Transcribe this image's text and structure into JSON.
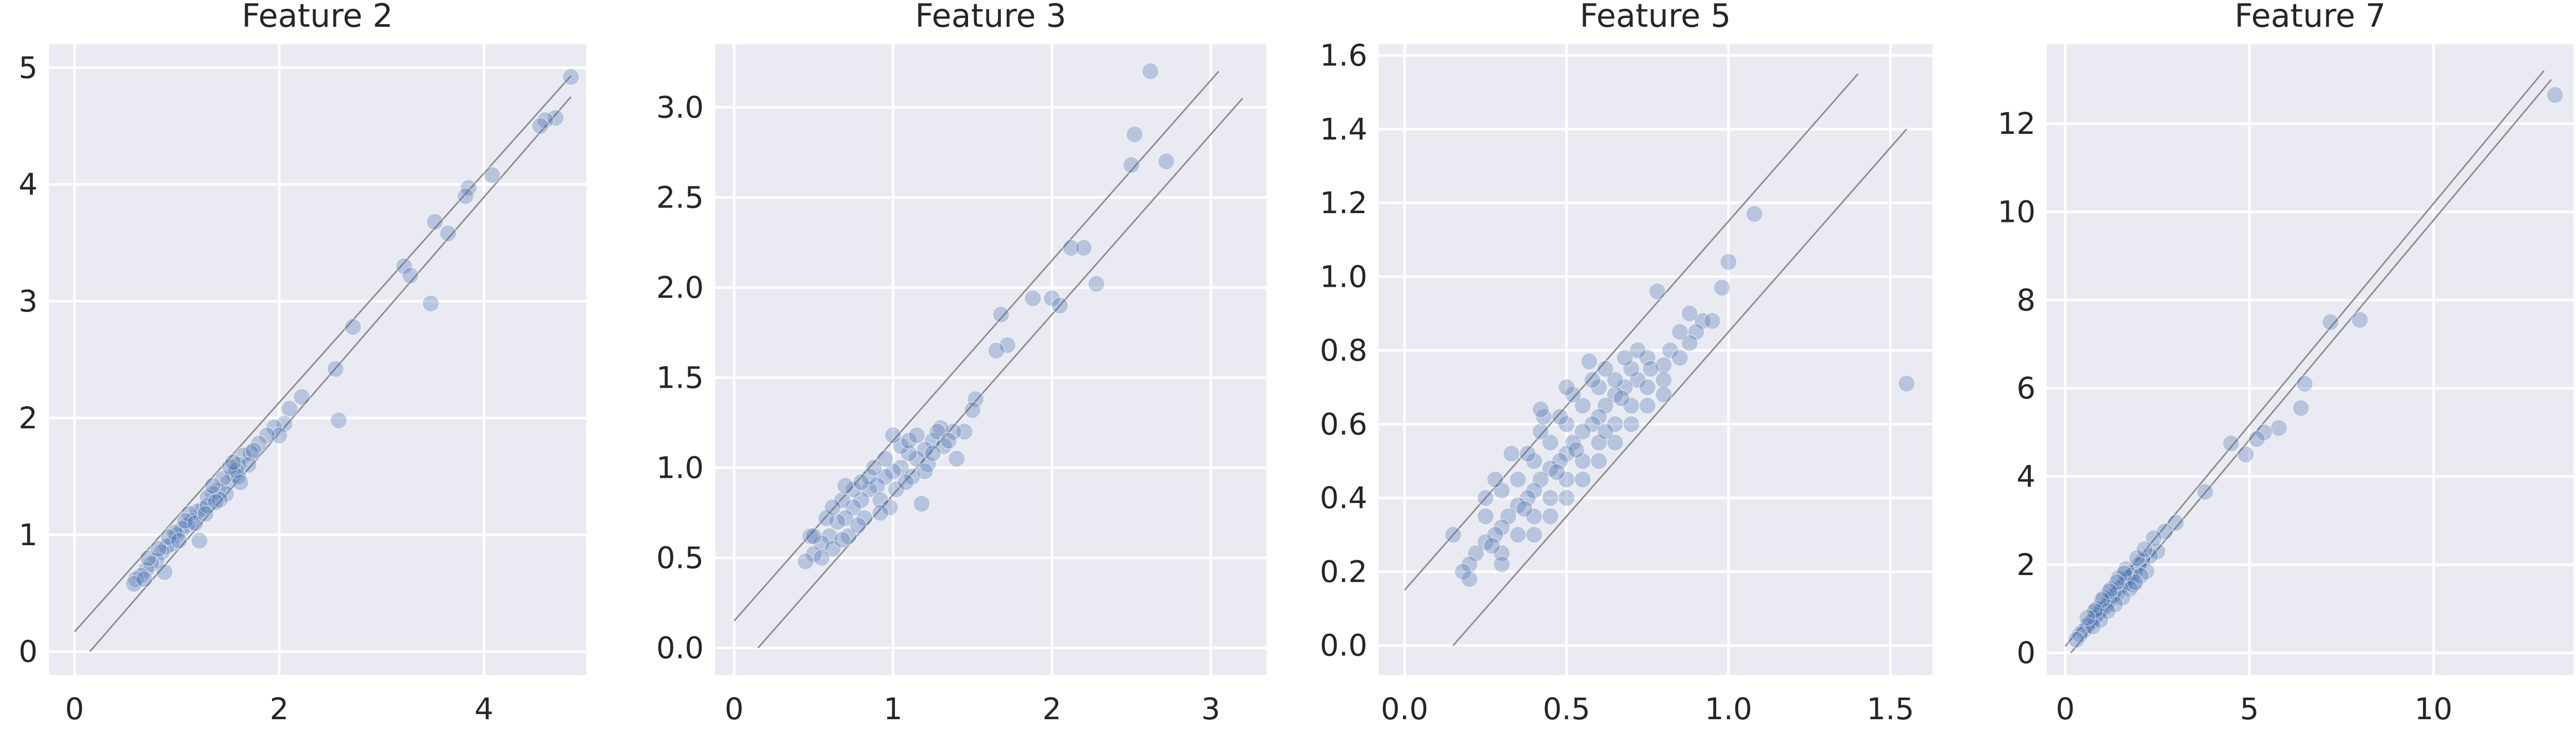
{
  "chart_data": [
    {
      "type": "scatter",
      "title": "Feature 2",
      "xlim": [
        -0.25,
        5.0
      ],
      "ylim": [
        -0.2,
        5.2
      ],
      "xticks": [
        0,
        2,
        4
      ],
      "yticks": [
        0,
        1,
        2,
        3,
        4,
        5
      ],
      "xtick_labels": [
        "0",
        "2",
        "4"
      ],
      "ytick_labels": [
        "0",
        "1",
        "2",
        "3",
        "4",
        "5"
      ],
      "grid": true,
      "reference_lines": [
        {
          "x": [
            0.0,
            4.85
          ],
          "y": [
            0.17,
            4.93
          ]
        },
        {
          "x": [
            0.15,
            4.85
          ],
          "y": [
            0.0,
            4.75
          ]
        }
      ],
      "points": [
        [
          4.85,
          4.92
        ],
        [
          4.7,
          4.57
        ],
        [
          4.6,
          4.55
        ],
        [
          4.55,
          4.5
        ],
        [
          4.08,
          4.08
        ],
        [
          3.85,
          3.97
        ],
        [
          3.82,
          3.9
        ],
        [
          3.52,
          3.68
        ],
        [
          3.65,
          3.58
        ],
        [
          3.48,
          2.98
        ],
        [
          3.22,
          3.3
        ],
        [
          3.28,
          3.22
        ],
        [
          2.72,
          2.78
        ],
        [
          2.55,
          2.42
        ],
        [
          2.58,
          1.98
        ],
        [
          2.22,
          2.18
        ],
        [
          2.1,
          2.08
        ],
        [
          2.05,
          1.95
        ],
        [
          1.95,
          1.92
        ],
        [
          2.0,
          1.85
        ],
        [
          1.88,
          1.85
        ],
        [
          1.8,
          1.78
        ],
        [
          1.72,
          1.7
        ],
        [
          1.65,
          1.68
        ],
        [
          1.6,
          1.6
        ],
        [
          1.55,
          1.52
        ],
        [
          1.5,
          1.45
        ],
        [
          1.45,
          1.48
        ],
        [
          1.4,
          1.38
        ],
        [
          1.35,
          1.35
        ],
        [
          1.3,
          1.32
        ],
        [
          1.25,
          1.22
        ],
        [
          1.2,
          1.2
        ],
        [
          1.15,
          1.12
        ],
        [
          1.1,
          1.08
        ],
        [
          1.05,
          1.05
        ],
        [
          1.0,
          1.0
        ],
        [
          0.95,
          0.92
        ],
        [
          0.9,
          0.9
        ],
        [
          0.85,
          0.85
        ],
        [
          0.8,
          0.78
        ],
        [
          0.75,
          0.75
        ],
        [
          0.7,
          0.7
        ],
        [
          0.65,
          0.65
        ],
        [
          0.6,
          0.62
        ],
        [
          0.58,
          0.58
        ],
        [
          1.22,
          0.95
        ],
        [
          0.88,
          0.68
        ],
        [
          1.6,
          1.5
        ],
        [
          1.7,
          1.6
        ],
        [
          1.48,
          1.35
        ],
        [
          1.12,
          1.18
        ],
        [
          1.3,
          1.25
        ],
        [
          1.42,
          1.3
        ],
        [
          1.58,
          1.55
        ],
        [
          1.62,
          1.45
        ],
        [
          0.98,
          1.02
        ],
        [
          1.08,
          1.12
        ],
        [
          1.18,
          1.1
        ],
        [
          0.72,
          0.8
        ],
        [
          0.68,
          0.62
        ],
        [
          1.52,
          1.58
        ],
        [
          1.75,
          1.72
        ],
        [
          1.35,
          1.42
        ],
        [
          0.92,
          0.98
        ],
        [
          1.02,
          0.95
        ],
        [
          1.38,
          1.28
        ],
        [
          1.55,
          1.62
        ],
        [
          1.28,
          1.18
        ],
        [
          0.82,
          0.88
        ]
      ]
    },
    {
      "type": "scatter",
      "title": "Feature 3",
      "xlim": [
        -0.12,
        3.35
      ],
      "ylim": [
        -0.15,
        3.35
      ],
      "xticks": [
        0,
        1,
        2,
        3
      ],
      "yticks": [
        0.0,
        0.5,
        1.0,
        1.5,
        2.0,
        2.5,
        3.0
      ],
      "xtick_labels": [
        "0",
        "1",
        "2",
        "3"
      ],
      "ytick_labels": [
        "0.0",
        "0.5",
        "1.0",
        "1.5",
        "2.0",
        "2.5",
        "3.0"
      ],
      "grid": true,
      "reference_lines": [
        {
          "x": [
            0.0,
            3.05
          ],
          "y": [
            0.15,
            3.2
          ]
        },
        {
          "x": [
            0.15,
            3.2
          ],
          "y": [
            0.0,
            3.05
          ]
        }
      ],
      "points": [
        [
          2.62,
          3.2
        ],
        [
          2.52,
          2.85
        ],
        [
          2.72,
          2.7
        ],
        [
          2.5,
          2.68
        ],
        [
          2.12,
          2.22
        ],
        [
          2.2,
          2.22
        ],
        [
          2.28,
          2.02
        ],
        [
          2.0,
          1.94
        ],
        [
          1.88,
          1.94
        ],
        [
          2.05,
          1.9
        ],
        [
          1.68,
          1.85
        ],
        [
          1.72,
          1.68
        ],
        [
          1.65,
          1.65
        ],
        [
          1.52,
          1.38
        ],
        [
          1.5,
          1.32
        ],
        [
          1.45,
          1.2
        ],
        [
          1.38,
          1.2
        ],
        [
          1.3,
          1.22
        ],
        [
          1.25,
          1.15
        ],
        [
          1.2,
          1.1
        ],
        [
          1.15,
          1.05
        ],
        [
          1.1,
          1.08
        ],
        [
          1.05,
          1.0
        ],
        [
          1.0,
          0.98
        ],
        [
          0.95,
          0.95
        ],
        [
          0.9,
          0.9
        ],
        [
          0.85,
          0.88
        ],
        [
          0.8,
          0.82
        ],
        [
          0.75,
          0.78
        ],
        [
          0.7,
          0.72
        ],
        [
          0.65,
          0.7
        ],
        [
          0.6,
          0.62
        ],
        [
          0.55,
          0.58
        ],
        [
          0.5,
          0.52
        ],
        [
          0.45,
          0.48
        ],
        [
          0.48,
          0.62
        ],
        [
          0.62,
          0.55
        ],
        [
          0.72,
          0.62
        ],
        [
          0.82,
          0.72
        ],
        [
          0.92,
          0.82
        ],
        [
          1.02,
          0.88
        ],
        [
          1.12,
          0.95
        ],
        [
          1.22,
          1.02
        ],
        [
          1.18,
          0.8
        ],
        [
          1.05,
          1.12
        ],
        [
          0.95,
          1.05
        ],
        [
          0.85,
          0.95
        ],
        [
          0.75,
          0.88
        ],
        [
          0.68,
          0.82
        ],
        [
          0.58,
          0.72
        ],
        [
          1.32,
          1.12
        ],
        [
          1.4,
          1.05
        ],
        [
          1.28,
          1.2
        ],
        [
          1.1,
          1.15
        ],
        [
          0.88,
          1.0
        ],
        [
          0.78,
          0.68
        ],
        [
          0.68,
          0.6
        ],
        [
          0.55,
          0.5
        ],
        [
          0.5,
          0.62
        ],
        [
          0.98,
          0.78
        ],
        [
          1.08,
          0.92
        ],
        [
          1.15,
          1.18
        ],
        [
          1.25,
          1.08
        ],
        [
          0.92,
          0.75
        ],
        [
          0.8,
          0.92
        ],
        [
          1.35,
          1.15
        ],
        [
          0.62,
          0.78
        ],
        [
          1.0,
          1.18
        ],
        [
          0.7,
          0.9
        ],
        [
          1.2,
          0.98
        ]
      ]
    },
    {
      "type": "scatter",
      "title": "Feature 5",
      "xlim": [
        -0.08,
        1.63
      ],
      "ylim": [
        -0.08,
        1.63
      ],
      "xticks": [
        0.0,
        0.5,
        1.0,
        1.5
      ],
      "yticks": [
        0.0,
        0.2,
        0.4,
        0.6,
        0.8,
        1.0,
        1.2,
        1.4,
        1.6
      ],
      "xtick_labels": [
        "0.0",
        "0.5",
        "1.0",
        "1.5"
      ],
      "ytick_labels": [
        "0.0",
        "0.2",
        "0.4",
        "0.6",
        "0.8",
        "1.0",
        "1.2",
        "1.4",
        "1.6"
      ],
      "grid": true,
      "reference_lines": [
        {
          "x": [
            0.0,
            1.4
          ],
          "y": [
            0.15,
            1.55
          ]
        },
        {
          "x": [
            0.15,
            1.55
          ],
          "y": [
            0.0,
            1.4
          ]
        }
      ],
      "points": [
        [
          1.55,
          0.71
        ],
        [
          1.08,
          1.17
        ],
        [
          1.0,
          1.04
        ],
        [
          0.98,
          0.97
        ],
        [
          0.92,
          0.88
        ],
        [
          0.95,
          0.88
        ],
        [
          0.88,
          0.9
        ],
        [
          0.9,
          0.85
        ],
        [
          0.85,
          0.85
        ],
        [
          0.78,
          0.96
        ],
        [
          0.82,
          0.8
        ],
        [
          0.8,
          0.76
        ],
        [
          0.75,
          0.78
        ],
        [
          0.72,
          0.72
        ],
        [
          0.7,
          0.75
        ],
        [
          0.68,
          0.7
        ],
        [
          0.65,
          0.68
        ],
        [
          0.62,
          0.65
        ],
        [
          0.6,
          0.62
        ],
        [
          0.58,
          0.6
        ],
        [
          0.55,
          0.58
        ],
        [
          0.52,
          0.55
        ],
        [
          0.5,
          0.52
        ],
        [
          0.48,
          0.5
        ],
        [
          0.45,
          0.48
        ],
        [
          0.42,
          0.45
        ],
        [
          0.4,
          0.42
        ],
        [
          0.38,
          0.4
        ],
        [
          0.35,
          0.38
        ],
        [
          0.32,
          0.35
        ],
        [
          0.3,
          0.32
        ],
        [
          0.28,
          0.3
        ],
        [
          0.25,
          0.28
        ],
        [
          0.22,
          0.25
        ],
        [
          0.2,
          0.22
        ],
        [
          0.18,
          0.2
        ],
        [
          0.15,
          0.3
        ],
        [
          0.2,
          0.18
        ],
        [
          0.25,
          0.35
        ],
        [
          0.3,
          0.25
        ],
        [
          0.35,
          0.3
        ],
        [
          0.4,
          0.35
        ],
        [
          0.45,
          0.4
        ],
        [
          0.5,
          0.45
        ],
        [
          0.55,
          0.5
        ],
        [
          0.6,
          0.55
        ],
        [
          0.65,
          0.6
        ],
        [
          0.7,
          0.65
        ],
        [
          0.75,
          0.7
        ],
        [
          0.8,
          0.72
        ],
        [
          0.35,
          0.45
        ],
        [
          0.4,
          0.5
        ],
        [
          0.45,
          0.55
        ],
        [
          0.5,
          0.6
        ],
        [
          0.55,
          0.65
        ],
        [
          0.6,
          0.7
        ],
        [
          0.65,
          0.72
        ],
        [
          0.3,
          0.42
        ],
        [
          0.25,
          0.4
        ],
        [
          0.38,
          0.52
        ],
        [
          0.42,
          0.58
        ],
        [
          0.48,
          0.62
        ],
        [
          0.52,
          0.68
        ],
        [
          0.58,
          0.72
        ],
        [
          0.62,
          0.75
        ],
        [
          0.68,
          0.78
        ],
        [
          0.72,
          0.8
        ],
        [
          0.76,
          0.75
        ],
        [
          0.85,
          0.78
        ],
        [
          0.88,
          0.82
        ],
        [
          0.3,
          0.22
        ],
        [
          0.4,
          0.3
        ],
        [
          0.5,
          0.4
        ],
        [
          0.6,
          0.5
        ],
        [
          0.7,
          0.6
        ],
        [
          0.8,
          0.68
        ],
        [
          0.45,
          0.35
        ],
        [
          0.55,
          0.45
        ],
        [
          0.65,
          0.55
        ],
        [
          0.75,
          0.65
        ],
        [
          0.28,
          0.45
        ],
        [
          0.33,
          0.52
        ],
        [
          0.43,
          0.62
        ],
        [
          0.5,
          0.7
        ],
        [
          0.57,
          0.77
        ],
        [
          0.62,
          0.58
        ],
        [
          0.47,
          0.47
        ],
        [
          0.37,
          0.37
        ],
        [
          0.27,
          0.27
        ],
        [
          0.53,
          0.53
        ],
        [
          0.67,
          0.67
        ],
        [
          0.42,
          0.64
        ]
      ]
    },
    {
      "type": "scatter",
      "title": "Feature 7",
      "xlim": [
        -0.5,
        13.8
      ],
      "ylim": [
        -0.5,
        13.8
      ],
      "xticks": [
        0,
        5,
        10
      ],
      "yticks": [
        0,
        2,
        4,
        6,
        8,
        10,
        12
      ],
      "xtick_labels": [
        "0",
        "5",
        "10"
      ],
      "ytick_labels": [
        "0",
        "2",
        "4",
        "6",
        "8",
        "10",
        "12"
      ],
      "grid": true,
      "reference_lines": [
        {
          "x": [
            0.0,
            13.0
          ],
          "y": [
            0.15,
            13.2
          ]
        },
        {
          "x": [
            0.15,
            13.2
          ],
          "y": [
            0.0,
            13.0
          ]
        }
      ],
      "points": [
        [
          13.3,
          12.65
        ],
        [
          8.0,
          7.55
        ],
        [
          7.2,
          7.5
        ],
        [
          6.5,
          6.1
        ],
        [
          6.4,
          5.55
        ],
        [
          5.8,
          5.1
        ],
        [
          5.4,
          5.0
        ],
        [
          5.2,
          4.85
        ],
        [
          4.9,
          4.5
        ],
        [
          4.5,
          4.75
        ],
        [
          3.8,
          3.65
        ],
        [
          3.0,
          2.95
        ],
        [
          2.7,
          2.75
        ],
        [
          2.5,
          2.3
        ],
        [
          2.3,
          2.2
        ],
        [
          2.1,
          2.1
        ],
        [
          2.0,
          2.0
        ],
        [
          1.9,
          1.85
        ],
        [
          1.8,
          1.75
        ],
        [
          1.7,
          1.7
        ],
        [
          1.6,
          1.55
        ],
        [
          1.5,
          1.5
        ],
        [
          1.4,
          1.35
        ],
        [
          1.3,
          1.3
        ],
        [
          1.2,
          1.2
        ],
        [
          1.1,
          1.05
        ],
        [
          1.0,
          1.0
        ],
        [
          0.9,
          0.9
        ],
        [
          0.8,
          0.8
        ],
        [
          0.7,
          0.7
        ],
        [
          0.6,
          0.62
        ],
        [
          0.5,
          0.5
        ],
        [
          0.4,
          0.42
        ],
        [
          0.3,
          0.3
        ],
        [
          1.85,
          1.55
        ],
        [
          1.65,
          1.9
        ],
        [
          1.45,
          1.7
        ],
        [
          1.25,
          1.45
        ],
        [
          1.05,
          1.25
        ],
        [
          0.85,
          1.0
        ],
        [
          2.2,
          1.85
        ],
        [
          1.95,
          2.15
        ],
        [
          1.75,
          1.45
        ],
        [
          1.55,
          1.25
        ],
        [
          1.35,
          1.1
        ],
        [
          1.15,
          0.95
        ],
        [
          0.95,
          0.75
        ],
        [
          0.75,
          0.6
        ],
        [
          2.05,
          1.75
        ],
        [
          1.9,
          1.6
        ],
        [
          1.6,
          1.8
        ],
        [
          1.4,
          1.6
        ],
        [
          1.2,
          1.4
        ],
        [
          1.0,
          1.2
        ],
        [
          0.8,
          0.95
        ],
        [
          0.6,
          0.8
        ],
        [
          2.4,
          2.6
        ],
        [
          2.15,
          2.35
        ]
      ]
    }
  ]
}
